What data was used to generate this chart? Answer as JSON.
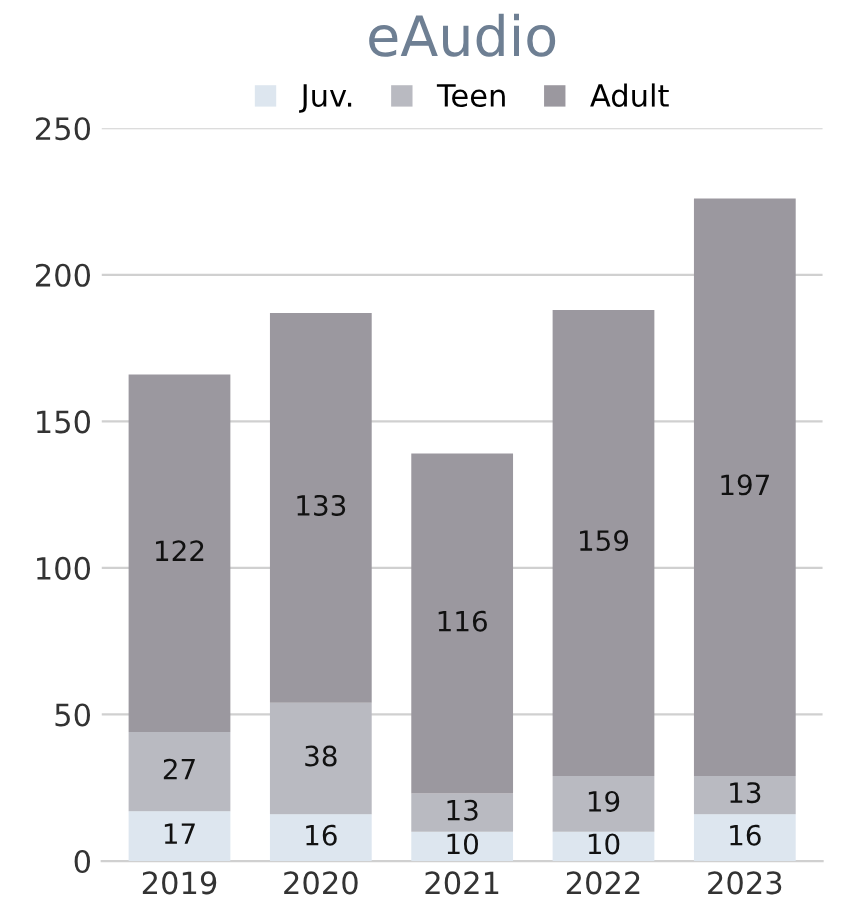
{
  "chart_data": {
    "type": "bar",
    "title": "eAudio",
    "categories": [
      "2019",
      "2020",
      "2021",
      "2022",
      "2023"
    ],
    "stacked": true,
    "data_labels": true,
    "grid": "y",
    "legend": "top",
    "ylim": [
      0,
      250
    ],
    "yticks": [
      0,
      50,
      100,
      150,
      200,
      250
    ],
    "series": [
      {
        "name": "Juv.",
        "color": "#dde6ef",
        "values": [
          17,
          16,
          10,
          10,
          16
        ]
      },
      {
        "name": "Teen",
        "color": "#b9bac1",
        "values": [
          27,
          38,
          13,
          19,
          13
        ]
      },
      {
        "name": "Adult",
        "color": "#9b989f",
        "values": [
          122,
          133,
          116,
          159,
          197
        ]
      }
    ]
  }
}
